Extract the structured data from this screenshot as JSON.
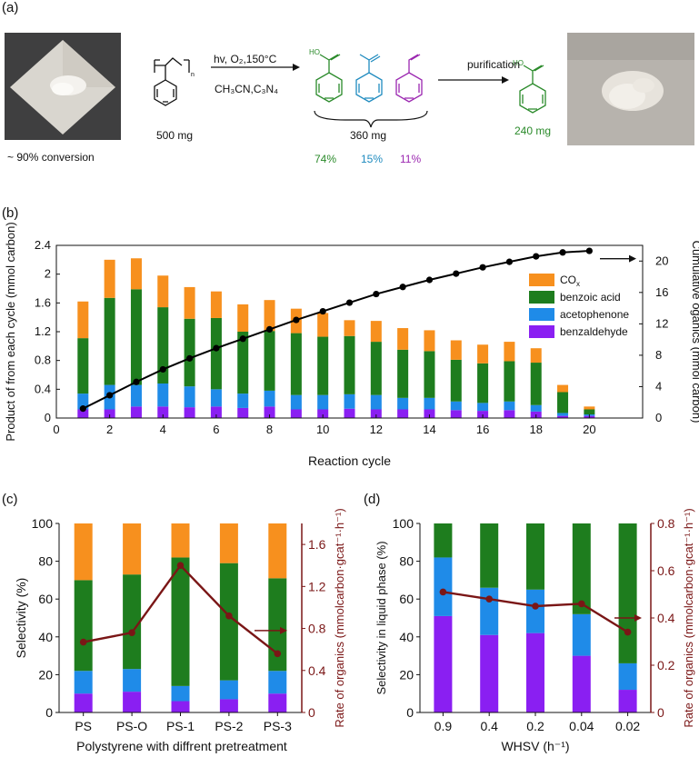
{
  "colors": {
    "cox": "#f7901e",
    "benzoic": "#1e7d1e",
    "acetophenone": "#1f8be8",
    "benzaldehyde": "#8a1ff2",
    "rate": "#7a1616",
    "green_text": "#2a8a2a",
    "blue_text": "#1f8bbf",
    "purple_text": "#9b27b0"
  },
  "scheme": {
    "panel": "(a)",
    "conversion": "~ 90% conversion",
    "conditions_line1": "hv, O₂,150°C",
    "conditions_line2": "CH₃CN,C₃N₄",
    "ps_mass": "500 mg",
    "product_mass": "360 mg",
    "pct_benzoic": "74%",
    "pct_aceto": "15%",
    "pct_benzald": "11%",
    "purification": "purification",
    "pure_mass": "240 mg",
    "ho_label": "HO",
    "n_label": "n"
  },
  "chart_data": [
    {
      "panel": "(b)",
      "type": "bar",
      "xlabel": "Reaction cycle",
      "ylabel": "Product of from each cycle (mmol carbon)",
      "y2label": "Cumulative oganics (mmol carbon)",
      "xlim": [
        0,
        22
      ],
      "ylim": [
        0,
        2.4
      ],
      "y2lim": [
        0,
        22
      ],
      "xticks": [
        0,
        2,
        4,
        6,
        8,
        10,
        12,
        14,
        16,
        18,
        20
      ],
      "yticks": [
        "0",
        "0.4",
        "0.8",
        "1.2",
        "1.6",
        "2",
        "2.4"
      ],
      "y2ticks": [
        0,
        4,
        8,
        12,
        16,
        20
      ],
      "legend": [
        "CO",
        "benzoic acid",
        "acetophenone",
        "benzaldehyde"
      ],
      "legend_sub": "x",
      "cycles": [
        1,
        2,
        3,
        4,
        5,
        6,
        7,
        8,
        9,
        10,
        11,
        12,
        13,
        14,
        15,
        16,
        17,
        18,
        19,
        20
      ],
      "benzaldehyde": [
        0.12,
        0.12,
        0.16,
        0.16,
        0.15,
        0.16,
        0.14,
        0.16,
        0.12,
        0.12,
        0.13,
        0.12,
        0.12,
        0.12,
        0.11,
        0.1,
        0.11,
        0.09,
        0.03,
        0.03
      ],
      "acetophenone": [
        0.22,
        0.34,
        0.3,
        0.32,
        0.29,
        0.24,
        0.2,
        0.22,
        0.2,
        0.2,
        0.2,
        0.2,
        0.16,
        0.16,
        0.12,
        0.11,
        0.12,
        0.09,
        0.04,
        0.02
      ],
      "benzoic_acid": [
        0.77,
        1.21,
        1.33,
        1.06,
        0.94,
        0.99,
        0.86,
        0.83,
        0.86,
        0.81,
        0.81,
        0.74,
        0.67,
        0.65,
        0.58,
        0.55,
        0.56,
        0.59,
        0.29,
        0.07
      ],
      "cox": [
        0.51,
        0.53,
        0.43,
        0.44,
        0.44,
        0.37,
        0.38,
        0.43,
        0.34,
        0.33,
        0.22,
        0.29,
        0.3,
        0.29,
        0.27,
        0.26,
        0.27,
        0.2,
        0.1,
        0.04
      ],
      "cumulative": [
        1.2,
        2.9,
        4.6,
        6.2,
        7.6,
        8.9,
        10.1,
        11.3,
        12.5,
        13.6,
        14.7,
        15.8,
        16.7,
        17.6,
        18.4,
        19.2,
        19.9,
        20.6,
        21.1,
        21.3
      ]
    },
    {
      "panel": "(c)",
      "type": "bar",
      "xlabel": "Polystyrene with diffrent pretreatment",
      "ylabel": "Selectivity (%)",
      "y2label": "Rate of organics (mmolcarbon·gcat⁻¹·h⁻¹)",
      "categories": [
        "PS",
        "PS-O",
        "PS-1",
        "PS-2",
        "PS-3"
      ],
      "ylim": [
        0,
        100
      ],
      "y2lim": [
        0,
        1.8
      ],
      "yticks": [
        0,
        20,
        40,
        60,
        80,
        100
      ],
      "y2ticks": [
        "0",
        "0.4",
        "0.8",
        "1.2",
        "1.6"
      ],
      "benzaldehyde": [
        10,
        11,
        6,
        7,
        10
      ],
      "acetophenone": [
        12,
        12,
        8,
        10,
        12
      ],
      "benzoic_acid": [
        48,
        50,
        68,
        62,
        49
      ],
      "cox": [
        30,
        27,
        18,
        21,
        29
      ],
      "rate": [
        0.67,
        0.76,
        1.4,
        0.92,
        0.56
      ]
    },
    {
      "panel": "(d)",
      "type": "bar",
      "xlabel": "WHSV (h⁻¹)",
      "ylabel": "Selectivity in liquid phase (%)",
      "y2label": "Rate of organics (mmolcarbon·gcat⁻¹·h⁻¹)",
      "categories": [
        "0.9",
        "0.4",
        "0.2",
        "0.04",
        "0.02"
      ],
      "ylim": [
        0,
        100
      ],
      "y2lim": [
        0,
        0.8
      ],
      "yticks": [
        0,
        20,
        40,
        60,
        80,
        100
      ],
      "y2ticks": [
        "0",
        "0.2",
        "0.4",
        "0.6",
        "0.8"
      ],
      "benzaldehyde": [
        51,
        41,
        42,
        30,
        12
      ],
      "acetophenone": [
        31,
        25,
        23,
        22,
        14
      ],
      "benzoic_acid": [
        18,
        34,
        35,
        48,
        74
      ],
      "rate": [
        0.51,
        0.48,
        0.45,
        0.46,
        0.34
      ]
    }
  ]
}
